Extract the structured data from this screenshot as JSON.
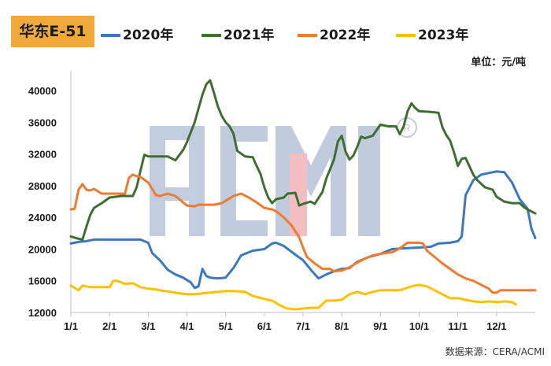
{
  "title": "华东E-51",
  "unit": "单位：元/吨",
  "source": "数据来源：CERA/ACMI",
  "watermark": "ACMI®",
  "chart_data": {
    "type": "line",
    "x_ticks": [
      "1/1",
      "2/1",
      "3/1",
      "4/1",
      "5/1",
      "6/1",
      "7/1",
      "8/1",
      "9/1",
      "10/1",
      "11/1",
      "12/1"
    ],
    "y_ticks": [
      12000,
      16000,
      20000,
      24000,
      28000,
      32000,
      36000,
      40000
    ],
    "y_tick_labels": [
      "12000",
      "16000",
      "20000",
      "24000",
      "28000",
      "32000",
      "36000",
      "40000"
    ],
    "ylim": [
      12000,
      42500
    ],
    "xlim": [
      0,
      12
    ],
    "grid": false,
    "legend_position": "top",
    "series": [
      {
        "name": "2020年",
        "color": "#3a78c0",
        "points": [
          [
            0,
            20700
          ],
          [
            0.2,
            20900
          ],
          [
            0.4,
            21000
          ],
          [
            0.6,
            21200
          ],
          [
            1,
            21200
          ],
          [
            1.5,
            21200
          ],
          [
            1.8,
            21200
          ],
          [
            2,
            20800
          ],
          [
            2.1,
            19500
          ],
          [
            2.3,
            18600
          ],
          [
            2.5,
            17400
          ],
          [
            2.7,
            16800
          ],
          [
            2.9,
            16400
          ],
          [
            3.1,
            15800
          ],
          [
            3.2,
            15100
          ],
          [
            3.3,
            15300
          ],
          [
            3.4,
            17500
          ],
          [
            3.5,
            16600
          ],
          [
            3.6,
            16400
          ],
          [
            3.8,
            16300
          ],
          [
            4,
            16400
          ],
          [
            4.2,
            17600
          ],
          [
            4.4,
            19200
          ],
          [
            4.7,
            19800
          ],
          [
            5,
            20000
          ],
          [
            5.2,
            20700
          ],
          [
            5.3,
            20800
          ],
          [
            5.5,
            20400
          ],
          [
            5.8,
            19300
          ],
          [
            6,
            18600
          ],
          [
            6.2,
            17400
          ],
          [
            6.4,
            16300
          ],
          [
            6.6,
            16800
          ],
          [
            6.8,
            17200
          ],
          [
            7,
            17500
          ],
          [
            7.2,
            17600
          ],
          [
            7.4,
            18400
          ],
          [
            7.7,
            19000
          ],
          [
            8,
            19400
          ],
          [
            8.3,
            20000
          ],
          [
            8.6,
            20100
          ],
          [
            9,
            20200
          ],
          [
            9.3,
            20300
          ],
          [
            9.5,
            20700
          ],
          [
            9.8,
            20800
          ],
          [
            10,
            21000
          ],
          [
            10.1,
            21600
          ],
          [
            10.2,
            26800
          ],
          [
            10.4,
            28700
          ],
          [
            10.6,
            29400
          ],
          [
            10.8,
            29600
          ],
          [
            11,
            29800
          ],
          [
            11.2,
            29700
          ],
          [
            11.4,
            28400
          ],
          [
            11.6,
            26300
          ],
          [
            11.8,
            25100
          ],
          [
            11.9,
            22600
          ],
          [
            12,
            21400
          ]
        ]
      },
      {
        "name": "2021年",
        "color": "#3f6f30",
        "points": [
          [
            0,
            21600
          ],
          [
            0.2,
            21300
          ],
          [
            0.3,
            21200
          ],
          [
            0.4,
            22800
          ],
          [
            0.5,
            24300
          ],
          [
            0.6,
            25200
          ],
          [
            0.8,
            25800
          ],
          [
            1,
            26500
          ],
          [
            1.3,
            26700
          ],
          [
            1.6,
            26700
          ],
          [
            1.7,
            27800
          ],
          [
            1.8,
            29900
          ],
          [
            1.9,
            31900
          ],
          [
            2,
            31700
          ],
          [
            2.2,
            31700
          ],
          [
            2.5,
            31700
          ],
          [
            2.7,
            31200
          ],
          [
            2.9,
            32500
          ],
          [
            3,
            33500
          ],
          [
            3.2,
            36000
          ],
          [
            3.4,
            39500
          ],
          [
            3.5,
            40800
          ],
          [
            3.6,
            41300
          ],
          [
            3.7,
            39700
          ],
          [
            3.8,
            38000
          ],
          [
            3.9,
            36800
          ],
          [
            4,
            36000
          ],
          [
            4.1,
            35500
          ],
          [
            4.2,
            34600
          ],
          [
            4.3,
            32400
          ],
          [
            4.5,
            31700
          ],
          [
            4.7,
            31600
          ],
          [
            4.8,
            30500
          ],
          [
            4.9,
            29500
          ],
          [
            5,
            27800
          ],
          [
            5.1,
            26500
          ],
          [
            5.2,
            25800
          ],
          [
            5.3,
            26300
          ],
          [
            5.5,
            26500
          ],
          [
            5.6,
            27000
          ],
          [
            5.8,
            27100
          ],
          [
            5.9,
            25500
          ],
          [
            6,
            25700
          ],
          [
            6.2,
            26000
          ],
          [
            6.3,
            25700
          ],
          [
            6.5,
            27200
          ],
          [
            6.6,
            28900
          ],
          [
            6.8,
            31300
          ],
          [
            6.9,
            33600
          ],
          [
            7,
            34300
          ],
          [
            7.1,
            32300
          ],
          [
            7.2,
            31300
          ],
          [
            7.3,
            31800
          ],
          [
            7.4,
            32900
          ],
          [
            7.5,
            34200
          ],
          [
            7.6,
            34000
          ],
          [
            7.8,
            34300
          ],
          [
            8,
            35700
          ],
          [
            8.2,
            35500
          ],
          [
            8.4,
            35500
          ],
          [
            8.5,
            34500
          ],
          [
            8.6,
            35500
          ],
          [
            8.7,
            37400
          ],
          [
            8.8,
            38400
          ],
          [
            8.9,
            37800
          ],
          [
            9,
            37400
          ],
          [
            9.3,
            37300
          ],
          [
            9.5,
            37200
          ],
          [
            9.6,
            35400
          ],
          [
            9.7,
            34400
          ],
          [
            9.8,
            33700
          ],
          [
            9.9,
            32200
          ],
          [
            10,
            30500
          ],
          [
            10.1,
            31400
          ],
          [
            10.2,
            31500
          ],
          [
            10.4,
            29400
          ],
          [
            10.5,
            28700
          ],
          [
            10.7,
            27800
          ],
          [
            10.9,
            27500
          ],
          [
            11,
            26600
          ],
          [
            11.2,
            26000
          ],
          [
            11.4,
            25800
          ],
          [
            11.6,
            25800
          ],
          [
            11.7,
            25300
          ],
          [
            11.8,
            25000
          ],
          [
            12,
            24500
          ]
        ]
      },
      {
        "name": "2022年",
        "color": "#ee7b2f",
        "points": [
          [
            0,
            25000
          ],
          [
            0.1,
            25100
          ],
          [
            0.2,
            27500
          ],
          [
            0.3,
            28200
          ],
          [
            0.4,
            27500
          ],
          [
            0.5,
            27400
          ],
          [
            0.6,
            27600
          ],
          [
            0.8,
            27000
          ],
          [
            1,
            27000
          ],
          [
            1.2,
            27000
          ],
          [
            1.4,
            27000
          ],
          [
            1.5,
            29000
          ],
          [
            1.6,
            29400
          ],
          [
            1.7,
            29200
          ],
          [
            1.8,
            29100
          ],
          [
            2,
            28400
          ],
          [
            2.2,
            26800
          ],
          [
            2.3,
            26700
          ],
          [
            2.5,
            27000
          ],
          [
            2.7,
            26700
          ],
          [
            2.9,
            25900
          ],
          [
            3,
            25500
          ],
          [
            3.2,
            25400
          ],
          [
            3.3,
            25600
          ],
          [
            3.5,
            25600
          ],
          [
            3.7,
            25600
          ],
          [
            3.9,
            25800
          ],
          [
            4,
            26100
          ],
          [
            4.2,
            26700
          ],
          [
            4.4,
            27000
          ],
          [
            4.6,
            26500
          ],
          [
            4.8,
            25900
          ],
          [
            5,
            25200
          ],
          [
            5.2,
            25000
          ],
          [
            5.3,
            24800
          ],
          [
            5.5,
            24000
          ],
          [
            5.7,
            23000
          ],
          [
            5.9,
            21500
          ],
          [
            6,
            20200
          ],
          [
            6.1,
            19000
          ],
          [
            6.3,
            18200
          ],
          [
            6.5,
            17500
          ],
          [
            6.7,
            17500
          ],
          [
            6.8,
            17200
          ],
          [
            7,
            17300
          ],
          [
            7.2,
            17700
          ],
          [
            7.4,
            18300
          ],
          [
            7.6,
            18800
          ],
          [
            7.8,
            19200
          ],
          [
            8,
            19400
          ],
          [
            8.3,
            19600
          ],
          [
            8.5,
            20100
          ],
          [
            8.7,
            20800
          ],
          [
            9,
            20800
          ],
          [
            9.1,
            20700
          ],
          [
            9.2,
            19800
          ],
          [
            9.4,
            19000
          ],
          [
            9.6,
            18200
          ],
          [
            9.8,
            17500
          ],
          [
            10,
            16800
          ],
          [
            10.2,
            16300
          ],
          [
            10.4,
            16000
          ],
          [
            10.6,
            15500
          ],
          [
            10.8,
            15000
          ],
          [
            10.9,
            14500
          ],
          [
            11,
            14500
          ],
          [
            11.1,
            14800
          ],
          [
            11.3,
            14800
          ],
          [
            11.7,
            14800
          ],
          [
            12,
            14800
          ]
        ]
      },
      {
        "name": "2023年",
        "color": "#ffc000",
        "points": [
          [
            0,
            15400
          ],
          [
            0.1,
            15100
          ],
          [
            0.2,
            14800
          ],
          [
            0.3,
            15400
          ],
          [
            0.5,
            15200
          ],
          [
            0.8,
            15200
          ],
          [
            1,
            15200
          ],
          [
            1.1,
            16000
          ],
          [
            1.2,
            16000
          ],
          [
            1.4,
            15600
          ],
          [
            1.6,
            15700
          ],
          [
            1.8,
            15200
          ],
          [
            2,
            15000
          ],
          [
            2.2,
            14900
          ],
          [
            2.4,
            14700
          ],
          [
            2.6,
            14600
          ],
          [
            2.8,
            14400
          ],
          [
            3,
            14300
          ],
          [
            3.2,
            14300
          ],
          [
            3.4,
            14400
          ],
          [
            3.6,
            14500
          ],
          [
            3.8,
            14600
          ],
          [
            4,
            14700
          ],
          [
            4.2,
            14700
          ],
          [
            4.5,
            14600
          ],
          [
            4.7,
            14100
          ],
          [
            5,
            13700
          ],
          [
            5.2,
            13500
          ],
          [
            5.4,
            12900
          ],
          [
            5.6,
            12500
          ],
          [
            5.8,
            12400
          ],
          [
            6,
            12500
          ],
          [
            6.2,
            12600
          ],
          [
            6.4,
            12600
          ],
          [
            6.6,
            13500
          ],
          [
            6.8,
            13500
          ],
          [
            7,
            13600
          ],
          [
            7.2,
            14300
          ],
          [
            7.4,
            14600
          ],
          [
            7.6,
            14300
          ],
          [
            7.8,
            14600
          ],
          [
            8,
            14800
          ],
          [
            8.2,
            14800
          ],
          [
            8.5,
            14800
          ],
          [
            8.8,
            15300
          ],
          [
            9,
            15500
          ],
          [
            9.2,
            15300
          ],
          [
            9.4,
            14800
          ],
          [
            9.6,
            14300
          ],
          [
            9.8,
            13800
          ],
          [
            10,
            13800
          ],
          [
            10.2,
            13600
          ],
          [
            10.4,
            13400
          ],
          [
            10.6,
            13300
          ],
          [
            10.8,
            13400
          ],
          [
            11,
            13300
          ],
          [
            11.2,
            13400
          ],
          [
            11.4,
            13300
          ],
          [
            11.5,
            13000
          ]
        ]
      }
    ]
  }
}
